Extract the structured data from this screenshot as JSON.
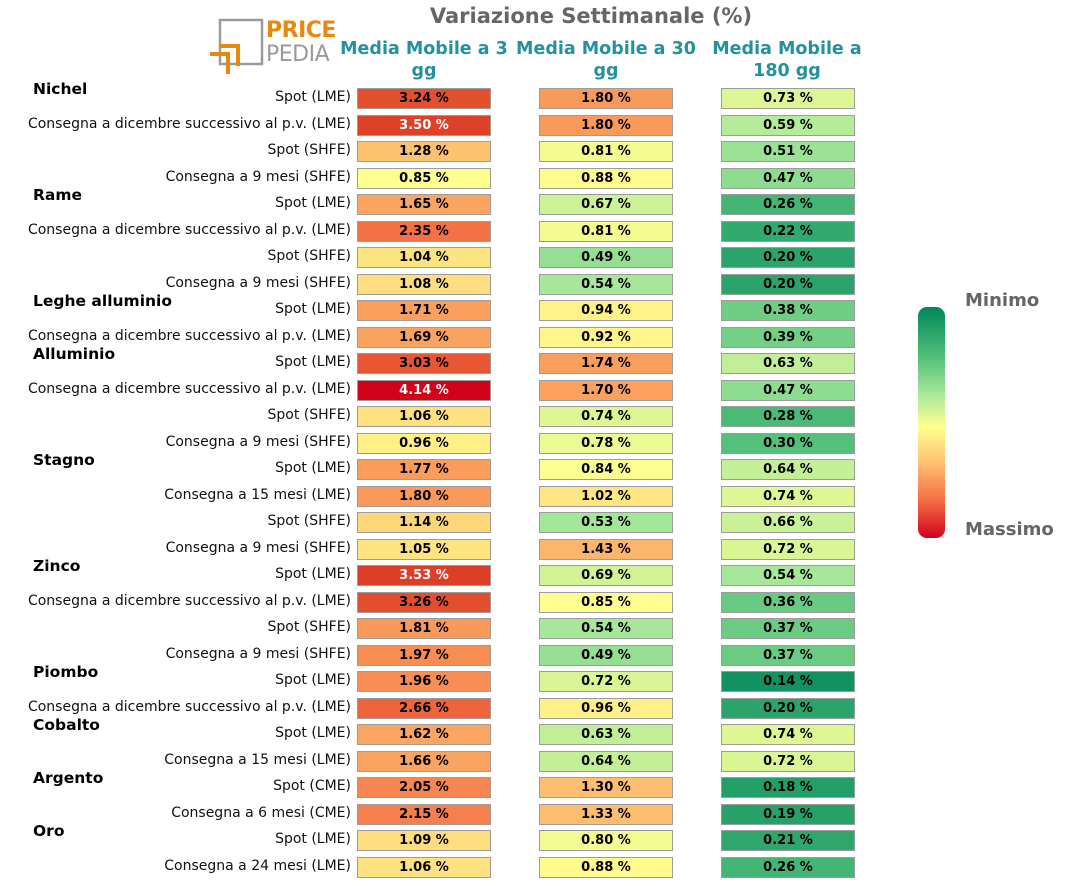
{
  "title": "Variazione Settimanale (%)",
  "logo": {
    "line1": "PRICE",
    "line2": "PEDIA"
  },
  "columns": [
    "Media Mobile a 3 gg",
    "Media Mobile a 30 gg",
    "Media Mobile a 180 gg"
  ],
  "legend": {
    "top": "Minimo",
    "bottom": "Massimo"
  },
  "colors": {
    "title": "#666666",
    "header": "#23929e",
    "logo_orange": "#e8890f",
    "logo_gray": "#9a9a9a"
  },
  "groups": [
    {
      "name": "Nichel",
      "start": 0
    },
    {
      "name": "Rame",
      "start": 4
    },
    {
      "name": "Leghe alluminio",
      "start": 8
    },
    {
      "name": "Alluminio",
      "start": 10
    },
    {
      "name": "Stagno",
      "start": 14
    },
    {
      "name": "Zinco",
      "start": 18
    },
    {
      "name": "Piombo",
      "start": 22
    },
    {
      "name": "Cobalto",
      "start": 24
    },
    {
      "name": "Argento",
      "start": 26
    },
    {
      "name": "Oro",
      "start": 28
    }
  ],
  "chart_data": {
    "type": "heatmap",
    "title": "Variazione Settimanale (%)",
    "value_suffix": " %",
    "columns": [
      "Media Mobile a 3 gg",
      "Media Mobile a 30 gg",
      "Media Mobile a 180 gg"
    ],
    "rows": [
      {
        "group": "Nichel",
        "label": "Spot (LME)",
        "values": [
          3.24,
          1.8,
          0.73
        ],
        "text": [
          "3.24 %",
          "1.80 %",
          "0.73 %"
        ]
      },
      {
        "group": "Nichel",
        "label": "Consegna a dicembre successivo al p.v. (LME)",
        "values": [
          3.5,
          1.8,
          0.59
        ],
        "text": [
          "3.50 %",
          "1.80 %",
          "0.59 %"
        ]
      },
      {
        "group": "Nichel",
        "label": "Spot (SHFE)",
        "values": [
          1.28,
          0.81,
          0.51
        ],
        "text": [
          "1.28 %",
          "0.81 %",
          "0.51 %"
        ]
      },
      {
        "group": "Nichel",
        "label": "Consegna a 9 mesi (SHFE)",
        "values": [
          0.85,
          0.88,
          0.47
        ],
        "text": [
          "0.85 %",
          "0.88 %",
          "0.47 %"
        ]
      },
      {
        "group": "Rame",
        "label": "Spot (LME)",
        "values": [
          1.65,
          0.67,
          0.26
        ],
        "text": [
          "1.65 %",
          "0.67 %",
          "0.26 %"
        ]
      },
      {
        "group": "Rame",
        "label": "Consegna a dicembre successivo al p.v. (LME)",
        "values": [
          2.35,
          0.81,
          0.22
        ],
        "text": [
          "2.35 %",
          "0.81 %",
          "0.22 %"
        ]
      },
      {
        "group": "Rame",
        "label": "Spot (SHFE)",
        "values": [
          1.04,
          0.49,
          0.2
        ],
        "text": [
          "1.04 %",
          "0.49 %",
          "0.20 %"
        ]
      },
      {
        "group": "Rame",
        "label": "Consegna a 9 mesi (SHFE)",
        "values": [
          1.08,
          0.54,
          0.2
        ],
        "text": [
          "1.08 %",
          "0.54 %",
          "0.20 %"
        ]
      },
      {
        "group": "Leghe alluminio",
        "label": "Spot (LME)",
        "values": [
          1.71,
          0.94,
          0.38
        ],
        "text": [
          "1.71 %",
          "0.94 %",
          "0.38 %"
        ]
      },
      {
        "group": "Leghe alluminio",
        "label": "Consegna a dicembre successivo al p.v. (LME)",
        "values": [
          1.69,
          0.92,
          0.39
        ],
        "text": [
          "1.69 %",
          "0.92 %",
          "0.39 %"
        ]
      },
      {
        "group": "Alluminio",
        "label": "Spot (LME)",
        "values": [
          3.03,
          1.74,
          0.63
        ],
        "text": [
          "3.03 %",
          "1.74 %",
          "0.63 %"
        ]
      },
      {
        "group": "Alluminio",
        "label": "Consegna a dicembre successivo al p.v. (LME)",
        "values": [
          4.14,
          1.7,
          0.47
        ],
        "text": [
          "4.14 %",
          "1.70 %",
          "0.47 %"
        ]
      },
      {
        "group": "Alluminio",
        "label": "Spot (SHFE)",
        "values": [
          1.06,
          0.74,
          0.28
        ],
        "text": [
          "1.06 %",
          "0.74 %",
          "0.28 %"
        ]
      },
      {
        "group": "Alluminio",
        "label": "Consegna a 9 mesi (SHFE)",
        "values": [
          0.96,
          0.78,
          0.3
        ],
        "text": [
          "0.96 %",
          "0.78 %",
          "0.30 %"
        ]
      },
      {
        "group": "Stagno",
        "label": "Spot (LME)",
        "values": [
          1.77,
          0.84,
          0.64
        ],
        "text": [
          "1.77 %",
          "0.84 %",
          "0.64 %"
        ]
      },
      {
        "group": "Stagno",
        "label": "Consegna a 15 mesi (LME)",
        "values": [
          1.8,
          1.02,
          0.74
        ],
        "text": [
          "1.80 %",
          "1.02 %",
          "0.74 %"
        ]
      },
      {
        "group": "Stagno",
        "label": "Spot (SHFE)",
        "values": [
          1.14,
          0.53,
          0.66
        ],
        "text": [
          "1.14 %",
          "0.53 %",
          "0.66 %"
        ]
      },
      {
        "group": "Stagno",
        "label": "Consegna a 9 mesi (SHFE)",
        "values": [
          1.05,
          1.43,
          0.72
        ],
        "text": [
          "1.05 %",
          "1.43 %",
          "0.72 %"
        ]
      },
      {
        "group": "Zinco",
        "label": "Spot (LME)",
        "values": [
          3.53,
          0.69,
          0.54
        ],
        "text": [
          "3.53 %",
          "0.69 %",
          "0.54 %"
        ]
      },
      {
        "group": "Zinco",
        "label": "Consegna a dicembre successivo al p.v. (LME)",
        "values": [
          3.26,
          0.85,
          0.36
        ],
        "text": [
          "3.26 %",
          "0.85 %",
          "0.36 %"
        ]
      },
      {
        "group": "Zinco",
        "label": "Spot (SHFE)",
        "values": [
          1.81,
          0.54,
          0.37
        ],
        "text": [
          "1.81 %",
          "0.54 %",
          "0.37 %"
        ]
      },
      {
        "group": "Zinco",
        "label": "Consegna a 9 mesi (SHFE)",
        "values": [
          1.97,
          0.49,
          0.37
        ],
        "text": [
          "1.97 %",
          "0.49 %",
          "0.37 %"
        ]
      },
      {
        "group": "Piombo",
        "label": "Spot (LME)",
        "values": [
          1.96,
          0.72,
          0.14
        ],
        "text": [
          "1.96 %",
          "0.72 %",
          "0.14 %"
        ]
      },
      {
        "group": "Piombo",
        "label": "Consegna a dicembre successivo al p.v. (LME)",
        "values": [
          2.66,
          0.96,
          0.2
        ],
        "text": [
          "2.66 %",
          "0.96 %",
          "0.20 %"
        ]
      },
      {
        "group": "Cobalto",
        "label": "Spot (LME)",
        "values": [
          1.62,
          0.63,
          0.74
        ],
        "text": [
          "1.62 %",
          "0.63 %",
          "0.74 %"
        ]
      },
      {
        "group": "Cobalto",
        "label": "Consegna a 15 mesi (LME)",
        "values": [
          1.66,
          0.64,
          0.72
        ],
        "text": [
          "1.66 %",
          "0.64 %",
          "0.72 %"
        ]
      },
      {
        "group": "Argento",
        "label": "Spot (CME)",
        "values": [
          2.05,
          1.3,
          0.18
        ],
        "text": [
          "2.05 %",
          "1.30 %",
          "0.18 %"
        ]
      },
      {
        "group": "Argento",
        "label": "Consegna a 6 mesi (CME)",
        "values": [
          2.15,
          1.33,
          0.19
        ],
        "text": [
          "2.15 %",
          "1.33 %",
          "0.19 %"
        ]
      },
      {
        "group": "Oro",
        "label": "Spot (LME)",
        "values": [
          1.09,
          0.8,
          0.21
        ],
        "text": [
          "1.09 %",
          "0.80 %",
          "0.21 %"
        ]
      },
      {
        "group": "Oro",
        "label": "Consegna a 24 mesi (LME)",
        "values": [
          1.06,
          0.88,
          0.26
        ],
        "text": [
          "1.06 %",
          "0.88 %",
          "0.26 %"
        ]
      }
    ]
  }
}
